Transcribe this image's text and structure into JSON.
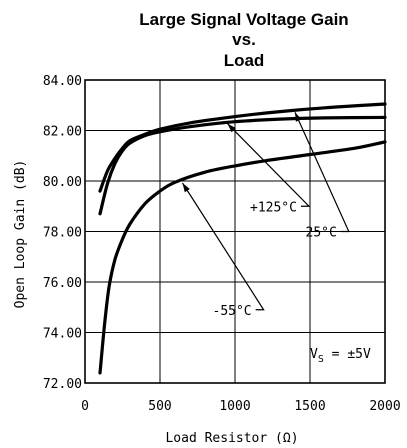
{
  "chart_data": {
    "type": "line",
    "title_lines": [
      "Large Signal Voltage Gain",
      "vs.",
      "Load"
    ],
    "xlabel": "Load Resistor (Ω)",
    "ylabel": "Open Loop Gain (dB)",
    "xlim": [
      0,
      2000
    ],
    "ylim": [
      72,
      84
    ],
    "x_ticks": [
      "0",
      "500",
      "1000",
      "1500",
      "2000"
    ],
    "x_tick_values": [
      0,
      500,
      1000,
      1500,
      2000
    ],
    "y_ticks": [
      "72.00",
      "74.00",
      "76.00",
      "78.00",
      "80.00",
      "82.00",
      "84.00"
    ],
    "y_tick_values": [
      72,
      74,
      76,
      78,
      80,
      82,
      84
    ],
    "grid": true,
    "series": [
      {
        "name": "+125°C",
        "points": [
          [
            100,
            78.7
          ],
          [
            150,
            79.9
          ],
          [
            200,
            80.7
          ],
          [
            250,
            81.2
          ],
          [
            300,
            81.5
          ],
          [
            400,
            81.8
          ],
          [
            500,
            81.95
          ],
          [
            700,
            82.15
          ],
          [
            1000,
            82.35
          ],
          [
            1300,
            82.45
          ],
          [
            1600,
            82.5
          ],
          [
            2000,
            82.52
          ]
        ]
      },
      {
        "name": "25°C",
        "points": [
          [
            100,
            79.6
          ],
          [
            150,
            80.4
          ],
          [
            200,
            80.9
          ],
          [
            250,
            81.3
          ],
          [
            300,
            81.6
          ],
          [
            400,
            81.85
          ],
          [
            500,
            82.05
          ],
          [
            700,
            82.3
          ],
          [
            1000,
            82.55
          ],
          [
            1300,
            82.75
          ],
          [
            1600,
            82.9
          ],
          [
            2000,
            83.05
          ]
        ]
      },
      {
        "name": "-55°C",
        "points": [
          [
            100,
            72.4
          ],
          [
            130,
            74.3
          ],
          [
            160,
            75.8
          ],
          [
            200,
            76.9
          ],
          [
            250,
            77.7
          ],
          [
            300,
            78.3
          ],
          [
            400,
            79.1
          ],
          [
            500,
            79.6
          ],
          [
            600,
            79.95
          ],
          [
            800,
            80.35
          ],
          [
            1000,
            80.6
          ],
          [
            1200,
            80.8
          ],
          [
            1500,
            81.05
          ],
          [
            1800,
            81.3
          ],
          [
            2000,
            81.55
          ]
        ]
      }
    ],
    "annotations": [
      {
        "text": "+125°C",
        "label_at": [
          1100,
          79.0
        ],
        "arrow_to": [
          950,
          82.35
        ]
      },
      {
        "text": "25°C",
        "label_at": [
          1470,
          78.0
        ],
        "arrow_to": [
          1400,
          82.8
        ]
      },
      {
        "text": "-55°C",
        "label_at": [
          850,
          74.9
        ],
        "arrow_to": [
          650,
          80.0
        ]
      }
    ],
    "condition_label": {
      "prefix": "V",
      "subscript": "S",
      "suffix": " = ±5V"
    }
  }
}
